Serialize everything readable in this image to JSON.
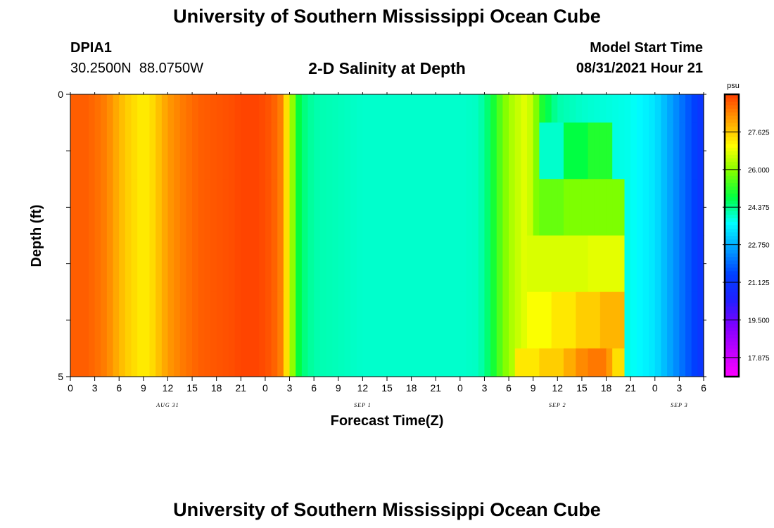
{
  "page": {
    "title": "University of Southern Mississippi Ocean Cube",
    "station_id": "DPIA1",
    "station_coords": "30.2500N  88.0750W",
    "plot_title": "2-D Salinity at Depth",
    "model_start_label": "Model Start Time",
    "model_start_value": "08/31/2021 Hour 21",
    "footer_title": "University of Southern Mississippi Ocean Cube"
  },
  "chart_data": {
    "type": "heatmap",
    "title": "2-D Salinity at Depth",
    "xlabel": "Forecast Time(Z)",
    "ylabel": "Depth (ft)",
    "x_tick_labels": [
      "0",
      "3",
      "6",
      "9",
      "12",
      "15",
      "18",
      "21",
      "0",
      "3",
      "6",
      "9",
      "12",
      "15",
      "18",
      "21",
      "0",
      "3",
      "6",
      "9",
      "12",
      "15",
      "18",
      "21",
      "0",
      "3",
      "6"
    ],
    "x_tick_hours": [
      0,
      3,
      6,
      9,
      12,
      15,
      18,
      21,
      24,
      27,
      30,
      33,
      36,
      39,
      42,
      45,
      48,
      51,
      54,
      57,
      60,
      63,
      66,
      69,
      72,
      75,
      78
    ],
    "date_labels": [
      {
        "text": "AUG 31",
        "hour": 12
      },
      {
        "text": "SEP 1",
        "hour": 36
      },
      {
        "text": "SEP 2",
        "hour": 60
      },
      {
        "text": "SEP 3",
        "hour": 75
      }
    ],
    "y_tick_labels": [
      "0",
      "5"
    ],
    "ylim": [
      0,
      5
    ],
    "xlim": [
      0,
      78
    ],
    "depth_bins_ft": [
      [
        0,
        0.5
      ],
      [
        0.5,
        1.5
      ],
      [
        1.5,
        2.5
      ],
      [
        2.5,
        3.5
      ],
      [
        3.5,
        4.5
      ],
      [
        4.5,
        5
      ]
    ],
    "colorbar": {
      "unit": "psu",
      "tick_labels": [
        "27.625",
        "26.000",
        "24.375",
        "22.750",
        "21.125",
        "19.500",
        "17.875"
      ],
      "min": 17.05,
      "max": 29.25,
      "colors": [
        "#ff00ff",
        "#c000ff",
        "#8000ff",
        "#2020ff",
        "#0040ff",
        "#00a0ff",
        "#00ffff",
        "#00ff40",
        "#80ff00",
        "#ffff00",
        "#ffa000",
        "#ff4000"
      ]
    },
    "time_profile_hours": [
      0,
      2,
      4,
      5,
      6,
      7,
      8,
      9,
      10,
      12,
      14,
      16,
      18,
      20,
      21,
      22,
      23,
      24,
      25,
      26,
      26.5,
      27,
      27.5,
      28,
      28.5,
      29,
      29.5,
      30,
      31,
      33,
      36,
      39,
      42,
      45,
      48,
      50,
      51,
      52,
      53,
      54,
      55,
      56,
      57,
      58,
      60,
      63,
      66,
      69,
      72,
      74,
      76,
      78
    ],
    "time_profile_psu": [
      28.9,
      28.9,
      28.6,
      28.3,
      27.9,
      27.6,
      27.4,
      27.2,
      27.4,
      28.2,
      28.6,
      28.9,
      29.0,
      29.1,
      29.2,
      29.2,
      29.2,
      29.1,
      28.9,
      28.5,
      27.6,
      26.8,
      25.8,
      24.9,
      24.6,
      24.4,
      24.3,
      24.2,
      24.15,
      24.1,
      24.0,
      24.0,
      24.0,
      24.0,
      24.0,
      24.05,
      24.3,
      24.9,
      25.6,
      26.2,
      26.5,
      26.8,
      26.4,
      25.1,
      24.2,
      24.0,
      23.9,
      23.8,
      23.4,
      22.6,
      21.8,
      21.0
    ],
    "anomalies": [
      {
        "depth_bin": 1,
        "hours": [
          [
            58,
            61,
            24.0
          ],
          [
            61,
            64,
            24.8
          ],
          [
            64,
            67,
            25.1
          ]
        ]
      },
      {
        "depth_bin": 2,
        "hours": [
          [
            58,
            61,
            25.7
          ],
          [
            61,
            64,
            25.9
          ],
          [
            64,
            68,
            25.9
          ]
        ]
      },
      {
        "depth_bin": 3,
        "hours": [
          [
            56,
            60,
            26.7
          ],
          [
            60,
            64,
            26.7
          ],
          [
            64,
            68,
            26.8
          ]
        ]
      },
      {
        "depth_bin": 4,
        "hours": [
          [
            56,
            59,
            27.0
          ],
          [
            59,
            62,
            27.3
          ],
          [
            62,
            65,
            27.6
          ],
          [
            65,
            68,
            27.9
          ]
        ]
      },
      {
        "depth_bin": 5,
        "hours": [
          [
            55,
            58,
            27.3
          ],
          [
            58,
            61,
            27.6
          ],
          [
            61,
            62,
            28.0
          ],
          [
            62,
            64,
            28.4
          ],
          [
            64,
            66,
            28.6
          ],
          [
            66,
            67,
            28.2
          ],
          [
            67,
            68,
            27.4
          ]
        ]
      }
    ]
  }
}
